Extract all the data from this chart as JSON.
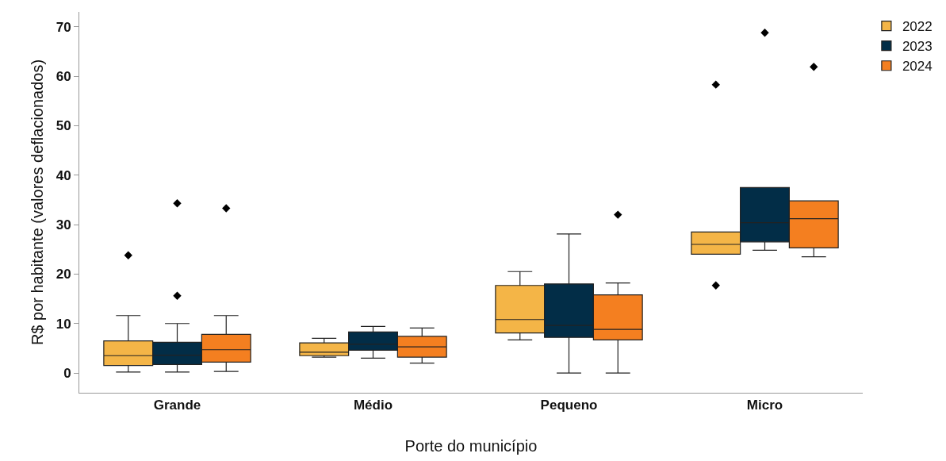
{
  "chart_data": {
    "type": "box",
    "xlabel": "Porte do município",
    "ylabel": "R$ por habitante (valores deflacionados)",
    "categories": [
      "Grande",
      "Médio",
      "Pequeno",
      "Micro"
    ],
    "ylim": [
      -4,
      73
    ],
    "yticks": [
      0,
      10,
      20,
      30,
      40,
      50,
      60,
      70
    ],
    "grid": false,
    "legend": "top right",
    "marker": "diamond",
    "series": [
      {
        "name": "2022",
        "color": "#f4b547",
        "boxes": [
          {
            "low": 0.2,
            "q1": 1.5,
            "median": 3.5,
            "q3": 6.5,
            "high": 11.6,
            "outliers": [
              23.8
            ]
          },
          {
            "low": 3.2,
            "q1": 3.5,
            "median": 4.2,
            "q3": 6.1,
            "high": 7.0
          },
          {
            "low": 6.7,
            "q1": 8.1,
            "median": 10.8,
            "q3": 17.7,
            "high": 20.5
          },
          {
            "low": 24.0,
            "q1": 24.0,
            "median": 26.0,
            "q3": 28.5,
            "high": 28.5,
            "outliers": [
              58.3,
              17.7
            ]
          }
        ]
      },
      {
        "name": "2023",
        "color": "#022d47",
        "boxes": [
          {
            "low": 0.2,
            "q1": 1.7,
            "median": 3.6,
            "q3": 6.2,
            "high": 10.0,
            "outliers": [
              34.3,
              15.6
            ]
          },
          {
            "low": 3.0,
            "q1": 4.6,
            "median": 5.8,
            "q3": 8.3,
            "high": 9.4
          },
          {
            "low": 0.0,
            "q1": 7.2,
            "median": 9.6,
            "q3": 18.0,
            "high": 28.1
          },
          {
            "low": 24.8,
            "q1": 26.5,
            "median": 30.4,
            "q3": 37.5,
            "high": 37.5,
            "outliers": [
              68.8
            ]
          }
        ]
      },
      {
        "name": "2024",
        "color": "#f47f20",
        "boxes": [
          {
            "low": 0.3,
            "q1": 2.2,
            "median": 4.7,
            "q3": 7.8,
            "high": 11.6,
            "outliers": [
              33.3
            ]
          },
          {
            "low": 2.0,
            "q1": 3.2,
            "median": 5.3,
            "q3": 7.4,
            "high": 9.1
          },
          {
            "low": 0.0,
            "q1": 6.7,
            "median": 8.8,
            "q3": 15.8,
            "high": 18.2,
            "outliers": [
              32.0
            ]
          },
          {
            "low": 23.5,
            "q1": 25.3,
            "median": 31.2,
            "q3": 34.8,
            "high": 34.8,
            "outliers": [
              61.9
            ]
          }
        ]
      }
    ]
  }
}
